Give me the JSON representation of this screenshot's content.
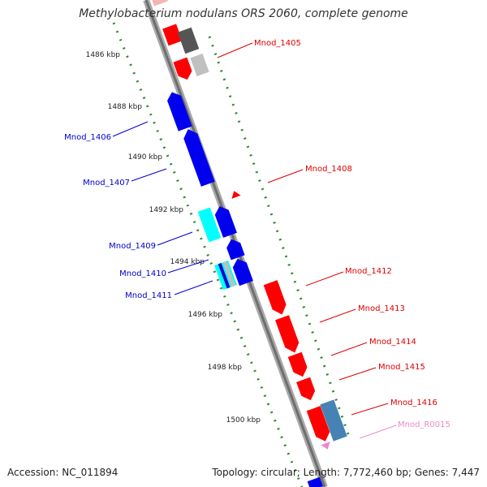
{
  "title": "Methylobacterium nodulans ORS 2060, complete genome",
  "footer": {
    "accession": "Accession: NC_011894",
    "summary": "Topology: circular; Length: 7,772,460 bp; Genes: 7,447"
  },
  "colors": {
    "backbone": "#8c8c8c",
    "tick_dots": "#2e8b2e",
    "forward_label": "#d40000",
    "reverse_label": "#0000aa",
    "rna_label": "#ee88cc"
  },
  "scale": {
    "ticks": [
      {
        "label": "1486 kbp"
      },
      {
        "label": "1488 kbp"
      },
      {
        "label": "1490 kbp"
      },
      {
        "label": "1492 kbp"
      },
      {
        "label": "1494 kbp"
      },
      {
        "label": "1496 kbp"
      },
      {
        "label": "1498 kbp"
      },
      {
        "label": "1500 kbp"
      }
    ]
  },
  "gene_labels": {
    "forward": [
      "Mnod_1405",
      "Mnod_1408",
      "Mnod_1412",
      "Mnod_1413",
      "Mnod_1414",
      "Mnod_1415",
      "Mnod_1416"
    ],
    "reverse": [
      "Mnod_1406",
      "Mnod_1407",
      "Mnod_1409",
      "Mnod_1410",
      "Mnod_1411"
    ],
    "rna": [
      "Mnod_R0015"
    ]
  }
}
